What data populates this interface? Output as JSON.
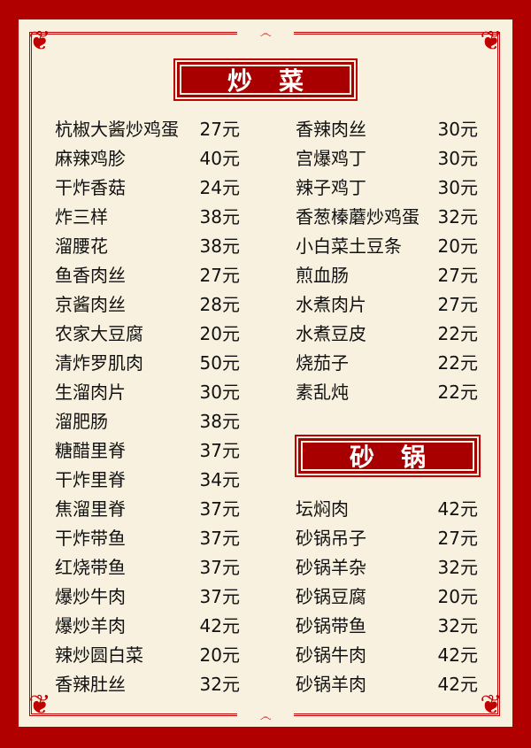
{
  "colors": {
    "border": "#b00000",
    "panel": "#f8f1df",
    "title_bg": "#a80000",
    "text": "#111111"
  },
  "sections": {
    "chaocai": {
      "title": "炒菜",
      "left": [
        {
          "name": "杭椒大酱炒鸡蛋",
          "price": "27元"
        },
        {
          "name": "麻辣鸡胗",
          "price": "40元"
        },
        {
          "name": "干炸香菇",
          "price": "24元"
        },
        {
          "name": "炸三样",
          "price": "38元"
        },
        {
          "name": "溜腰花",
          "price": "38元"
        },
        {
          "name": "鱼香肉丝",
          "price": "27元"
        },
        {
          "name": "京酱肉丝",
          "price": "28元"
        },
        {
          "name": "农家大豆腐",
          "price": "20元"
        },
        {
          "name": "清炸罗肌肉",
          "price": "50元"
        },
        {
          "name": "生溜肉片",
          "price": "30元"
        },
        {
          "name": "溜肥肠",
          "price": "38元"
        },
        {
          "name": "糖醋里脊",
          "price": "37元"
        },
        {
          "name": "干炸里脊",
          "price": "34元"
        },
        {
          "name": "焦溜里脊",
          "price": "37元"
        },
        {
          "name": "干炸带鱼",
          "price": "37元"
        },
        {
          "name": "红烧带鱼",
          "price": "37元"
        },
        {
          "name": "爆炒牛肉",
          "price": "37元"
        },
        {
          "name": "爆炒羊肉",
          "price": "42元"
        },
        {
          "name": "辣炒圆白菜",
          "price": "20元"
        },
        {
          "name": "香辣肚丝",
          "price": "32元"
        }
      ],
      "right": [
        {
          "name": "香辣肉丝",
          "price": "30元"
        },
        {
          "name": "宫爆鸡丁",
          "price": "30元"
        },
        {
          "name": "辣子鸡丁",
          "price": "30元"
        },
        {
          "name": "香葱榛蘑炒鸡蛋",
          "price": "32元"
        },
        {
          "name": "小白菜土豆条",
          "price": "20元"
        },
        {
          "name": "煎血肠",
          "price": "27元"
        },
        {
          "name": "水煮肉片",
          "price": "27元"
        },
        {
          "name": "水煮豆皮",
          "price": "22元"
        },
        {
          "name": "烧茄子",
          "price": "22元"
        },
        {
          "name": "素乱炖",
          "price": "22元"
        }
      ]
    },
    "shaguo": {
      "title": "砂锅",
      "items": [
        {
          "name": "坛焖肉",
          "price": "42元"
        },
        {
          "name": "砂锅吊子",
          "price": "27元"
        },
        {
          "name": "砂锅羊杂",
          "price": "32元"
        },
        {
          "name": "砂锅豆腐",
          "price": "20元"
        },
        {
          "name": "砂锅带鱼",
          "price": "32元"
        },
        {
          "name": "砂锅牛肉",
          "price": "42元"
        },
        {
          "name": "砂锅羊肉",
          "price": "42元"
        }
      ]
    }
  }
}
